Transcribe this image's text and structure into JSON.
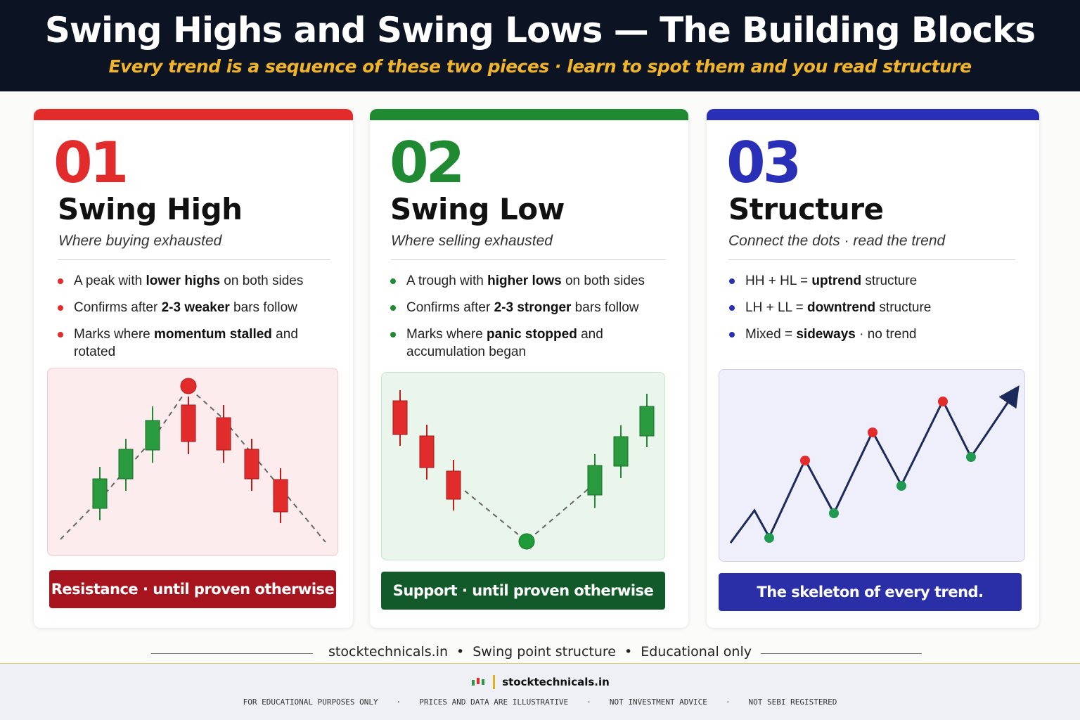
{
  "header": {
    "title": "Swing Highs and Swing Lows — The Building Blocks",
    "subtitle": "Every trend is a sequence of these two pieces · learn to spot them and you read structure"
  },
  "cards": [
    {
      "number": "01",
      "title": "Swing High",
      "tagline": "Where buying exhausted",
      "accent": "#e22c2c",
      "bullets": [
        {
          "pre": "A peak with ",
          "bold": "lower highs",
          "post": " on both sides"
        },
        {
          "pre": "Confirms after ",
          "bold": "2-3 weaker",
          "post": " bars follow"
        },
        {
          "pre": "Marks where ",
          "bold": "momentum stalled",
          "post": " and rotated"
        }
      ],
      "banner": "Resistance · until proven otherwise",
      "banner_color": "#a8141e"
    },
    {
      "number": "02",
      "title": "Swing Low",
      "tagline": "Where selling exhausted",
      "accent": "#1f8a32",
      "bullets": [
        {
          "pre": "A trough with ",
          "bold": "higher lows",
          "post": " on both sides"
        },
        {
          "pre": "Confirms after ",
          "bold": "2-3 stronger",
          "post": " bars follow"
        },
        {
          "pre": "Marks where ",
          "bold": "panic stopped",
          "post": " and accumulation began"
        }
      ],
      "banner": "Support · until proven otherwise",
      "banner_color": "#125a2a"
    },
    {
      "number": "03",
      "title": "Structure",
      "tagline": "Connect the dots · read the trend",
      "accent": "#2a2fb8",
      "bullets": [
        {
          "pre": "HH + HL = ",
          "bold": "uptrend",
          "post": " structure"
        },
        {
          "pre": "LH + LL = ",
          "bold": "downtrend",
          "post": " structure"
        },
        {
          "pre": "Mixed = ",
          "bold": "sideways",
          "post": " · no trend"
        }
      ],
      "banner": "The skeleton of every trend.",
      "banner_color": "#2a2fa8"
    }
  ],
  "footer": {
    "items": [
      "stocktechnicals.in",
      "Swing point structure",
      "Educational only"
    ],
    "brand": "stocktechnicals.in",
    "disclaimers": [
      "FOR EDUCATIONAL PURPOSES ONLY",
      "PRICES AND DATA ARE ILLUSTRATIVE",
      "NOT INVESTMENT ADVICE",
      "NOT SEBI REGISTERED"
    ]
  },
  "colors": {
    "header_bg": "#0c1424",
    "subtitle": "#f2b52a",
    "bull": "#1f8a32",
    "bear": "#e22c2c"
  }
}
